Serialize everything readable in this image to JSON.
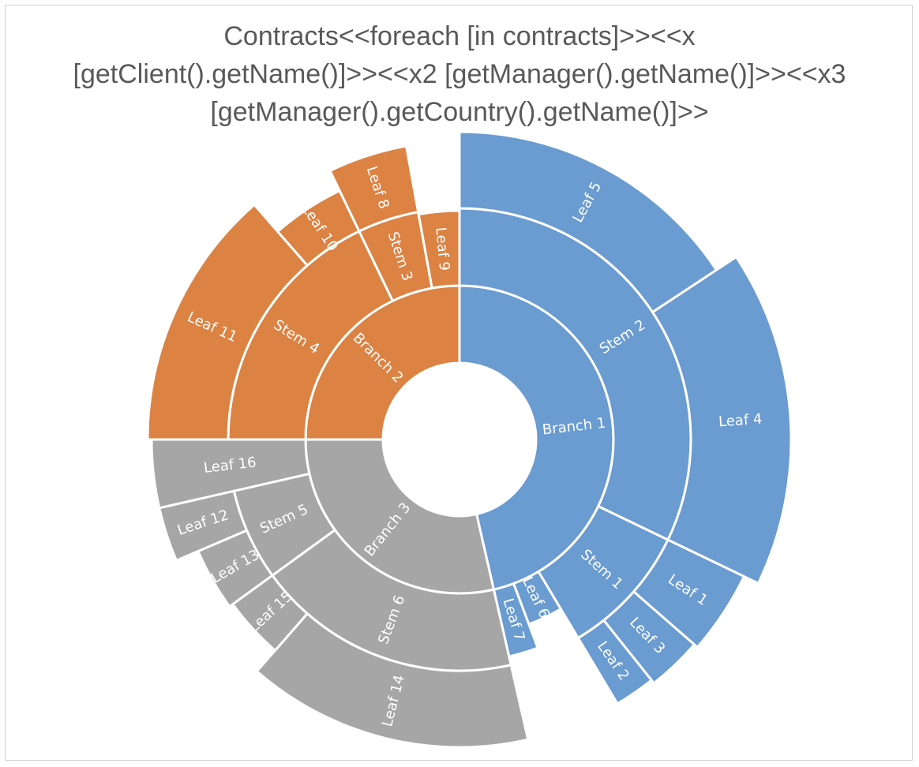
{
  "chart_data": {
    "type": "sunburst",
    "title_lines": [
      "Contracts<<foreach [in contracts]>><<x",
      "[getClient().getName()]>><<x2 [getManager().getName()]>><<x3",
      "[getManager().getCountry().getName()]>>"
    ],
    "colors": {
      "Branch 1": "#6a9bd1",
      "Branch 2": "#dc8243",
      "Branch 3": "#a6a6a6"
    },
    "hierarchy": [
      {
        "name": "Branch 1",
        "children": [
          {
            "name": "Stem 2",
            "children": [
              {
                "name": "Leaf 5",
                "value": 22
              },
              {
                "name": "Leaf 4",
                "value": 23
              }
            ]
          },
          {
            "name": "Stem 1",
            "children": [
              {
                "name": "Leaf 1",
                "value": 6
              },
              {
                "name": "Leaf 3",
                "value": 4
              },
              {
                "name": "Leaf 2",
                "value": 3
              }
            ]
          },
          {
            "name": "",
            "children": [
              {
                "name": "Leaf 6",
                "value": 4
              }
            ]
          },
          {
            "name": "",
            "children": [
              {
                "name": "Leaf 7",
                "value": 3
              }
            ]
          }
        ]
      },
      {
        "name": "Branch 3",
        "children": [
          {
            "name": "Stem 6",
            "children": [
              {
                "name": "Leaf 14",
                "value": 21
              },
              {
                "name": "Leaf 15",
                "value": 5
              }
            ]
          },
          {
            "name": "Stem 5",
            "children": [
              {
                "name": "Leaf 13",
                "value": 5
              },
              {
                "name": "Leaf 12",
                "value": 4
              }
            ]
          },
          {
            "name": "",
            "children": [
              {
                "name": "Leaf 16",
                "value": 5
              }
            ]
          }
        ]
      },
      {
        "name": "Branch 2",
        "children": [
          {
            "name": "Stem 4",
            "children": [
              {
                "name": "Leaf 11",
                "value": 19
              },
              {
                "name": "Leaf 10",
                "value": 6
              }
            ]
          },
          {
            "name": "Stem 3",
            "children": [
              {
                "name": "Leaf 8",
                "value": 6
              }
            ]
          },
          {
            "name": "",
            "children": [
              {
                "name": "Leaf 9",
                "value": 4
              }
            ]
          }
        ]
      }
    ]
  }
}
